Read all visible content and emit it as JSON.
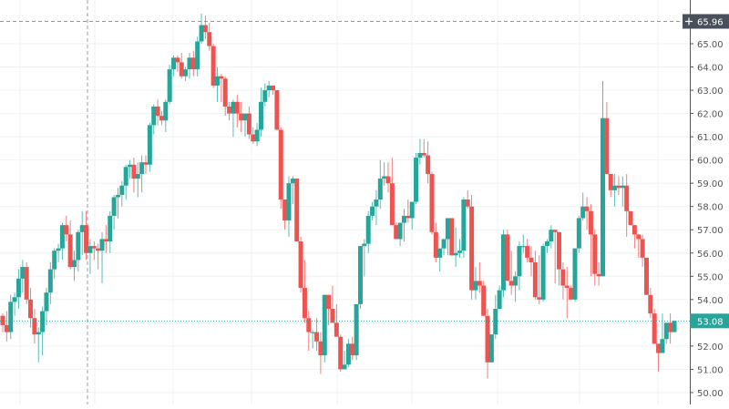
{
  "chart_data": {
    "type": "candlestick",
    "title": "",
    "xlabel": "",
    "ylabel": "",
    "ylim": [
      49.6,
      66.9
    ],
    "grid": true,
    "y_ticks": [
      "50.00",
      "51.00",
      "52.00",
      "53.00",
      "54.00",
      "55.00",
      "56.00",
      "57.00",
      "58.00",
      "59.00",
      "60.00",
      "61.00",
      "62.00",
      "63.00",
      "64.00",
      "65.00"
    ],
    "y_tick_values": [
      50,
      51,
      52,
      53,
      54,
      55,
      56,
      57,
      58,
      59,
      60,
      61,
      62,
      63,
      64,
      65
    ],
    "crosshair": {
      "price": 65.96,
      "label": "65.96",
      "x": 96
    },
    "last_price": {
      "value": 53.08,
      "label": "53.08"
    },
    "colors": {
      "up": "#26a69a",
      "down": "#ef5350",
      "grid": "#eef2f6",
      "axis": "#555555",
      "crosshair_label_bg": "#4a4f5c",
      "last_price_bg": "#26a69a"
    },
    "candles": [
      [
        53.3,
        53.4,
        52.6,
        52.9
      ],
      [
        52.9,
        53.5,
        52.2,
        52.6
      ],
      [
        52.6,
        54.2,
        52.3,
        53.9
      ],
      [
        53.9,
        54.3,
        53.3,
        54.1
      ],
      [
        54.1,
        55.3,
        53.6,
        54.9
      ],
      [
        54.9,
        55.7,
        54.3,
        55.4
      ],
      [
        55.4,
        55.6,
        53.8,
        54.0
      ],
      [
        54.0,
        54.5,
        52.8,
        53.2
      ],
      [
        53.2,
        53.6,
        52.1,
        52.5
      ],
      [
        52.5,
        52.8,
        51.3,
        52.6
      ],
      [
        52.6,
        53.7,
        51.6,
        53.5
      ],
      [
        53.5,
        54.5,
        52.9,
        54.3
      ],
      [
        54.3,
        55.6,
        53.8,
        55.3
      ],
      [
        55.3,
        56.2,
        54.9,
        56.1
      ],
      [
        56.1,
        56.4,
        55.6,
        56.2
      ],
      [
        56.2,
        57.3,
        55.7,
        57.2
      ],
      [
        57.2,
        57.6,
        56.5,
        56.8
      ],
      [
        56.8,
        57.4,
        55.3,
        55.4
      ],
      [
        55.4,
        56.1,
        54.8,
        55.7
      ],
      [
        55.7,
        57.0,
        55.2,
        56.9
      ],
      [
        56.9,
        57.8,
        55.9,
        57.2
      ],
      [
        57.2,
        57.8,
        55.7,
        56.0
      ],
      [
        56.0,
        56.6,
        55.1,
        56.3
      ],
      [
        56.3,
        56.5,
        55.7,
        56.2
      ],
      [
        56.2,
        56.4,
        55.3,
        56.1
      ],
      [
        56.1,
        56.9,
        54.7,
        56.6
      ],
      [
        56.6,
        57.2,
        56.0,
        56.5
      ],
      [
        56.5,
        57.8,
        56.0,
        57.6
      ],
      [
        57.6,
        58.5,
        57.0,
        58.4
      ],
      [
        58.4,
        58.8,
        57.5,
        58.5
      ],
      [
        58.5,
        59.1,
        58.0,
        58.9
      ],
      [
        58.9,
        59.8,
        58.3,
        59.7
      ],
      [
        59.7,
        60.0,
        59.2,
        59.8
      ],
      [
        59.8,
        60.1,
        58.6,
        59.2
      ],
      [
        59.2,
        59.9,
        58.4,
        59.4
      ],
      [
        59.4,
        60.2,
        58.6,
        59.9
      ],
      [
        59.9,
        60.2,
        59.4,
        59.8
      ],
      [
        59.8,
        61.6,
        59.5,
        61.5
      ],
      [
        61.5,
        62.4,
        61.1,
        62.3
      ],
      [
        62.3,
        62.6,
        61.5,
        61.9
      ],
      [
        61.9,
        62.1,
        61.5,
        61.7
      ],
      [
        61.7,
        62.6,
        61.2,
        62.5
      ],
      [
        62.5,
        64.1,
        62.4,
        63.9
      ],
      [
        63.9,
        64.5,
        63.6,
        64.4
      ],
      [
        64.4,
        64.5,
        63.8,
        64.2
      ],
      [
        64.2,
        64.6,
        63.5,
        63.6
      ],
      [
        63.6,
        64.0,
        63.4,
        63.9
      ],
      [
        63.9,
        64.6,
        63.5,
        64.4
      ],
      [
        64.4,
        64.7,
        63.6,
        63.9
      ],
      [
        63.9,
        65.3,
        63.6,
        65.1
      ],
      [
        65.1,
        66.3,
        65.0,
        65.8
      ],
      [
        65.8,
        66.2,
        65.2,
        65.5
      ],
      [
        65.5,
        65.9,
        64.7,
        64.9
      ],
      [
        64.9,
        65.0,
        63.1,
        63.2
      ],
      [
        63.2,
        64.0,
        62.5,
        63.6
      ],
      [
        63.6,
        63.7,
        62.5,
        63.5
      ],
      [
        63.5,
        63.6,
        61.9,
        62.3
      ],
      [
        62.3,
        62.5,
        61.7,
        62.0
      ],
      [
        62.0,
        62.6,
        61.0,
        62.5
      ],
      [
        62.5,
        62.8,
        61.4,
        62.0
      ],
      [
        62.0,
        62.5,
        61.2,
        61.7
      ],
      [
        61.7,
        62.0,
        61.0,
        62.0
      ],
      [
        62.0,
        62.3,
        60.9,
        61.1
      ],
      [
        61.1,
        61.4,
        60.7,
        60.8
      ],
      [
        60.8,
        61.6,
        60.6,
        61.3
      ],
      [
        61.3,
        63.1,
        61.0,
        62.5
      ],
      [
        62.5,
        63.3,
        62.3,
        63.0
      ],
      [
        63.0,
        63.4,
        62.7,
        63.2
      ],
      [
        63.2,
        63.2,
        62.8,
        63.0
      ],
      [
        63.0,
        63.0,
        61.4,
        61.3
      ],
      [
        61.3,
        61.4,
        57.9,
        58.3
      ],
      [
        58.3,
        58.2,
        57.0,
        57.4
      ],
      [
        57.4,
        59.3,
        56.7,
        59.0
      ],
      [
        59.0,
        59.3,
        58.1,
        59.2
      ],
      [
        59.2,
        59.2,
        56.8,
        56.5
      ],
      [
        56.5,
        56.7,
        54.3,
        54.5
      ],
      [
        54.5,
        55.7,
        53.0,
        53.2
      ],
      [
        53.2,
        53.5,
        51.8,
        52.6
      ],
      [
        52.6,
        52.7,
        51.9,
        52.6
      ],
      [
        52.6,
        53.2,
        51.8,
        52.2
      ],
      [
        52.2,
        52.6,
        50.8,
        51.6
      ],
      [
        51.6,
        53.6,
        51.3,
        54.2
      ],
      [
        54.2,
        54.2,
        52.9,
        53.6
      ],
      [
        53.6,
        54.6,
        53.0,
        53.0
      ],
      [
        53.0,
        53.8,
        52.6,
        52.4
      ],
      [
        52.4,
        52.5,
        50.9,
        51.0
      ],
      [
        51.0,
        51.8,
        51.0,
        51.2
      ],
      [
        51.2,
        52.3,
        51.1,
        52.1
      ],
      [
        52.1,
        52.4,
        51.4,
        51.6
      ],
      [
        51.6,
        53.2,
        51.4,
        53.8
      ],
      [
        53.8,
        56.2,
        53.6,
        56.3
      ],
      [
        56.3,
        56.6,
        55.0,
        56.4
      ],
      [
        56.4,
        57.8,
        56.0,
        57.6
      ],
      [
        57.6,
        58.2,
        57.4,
        58.0
      ],
      [
        58.0,
        58.7,
        57.2,
        58.3
      ],
      [
        58.3,
        60.0,
        57.9,
        59.2
      ],
      [
        59.2,
        59.9,
        58.9,
        59.3
      ],
      [
        59.3,
        59.9,
        58.6,
        59.0
      ],
      [
        59.0,
        60.1,
        57.8,
        57.2
      ],
      [
        57.2,
        57.3,
        56.6,
        56.6
      ],
      [
        56.6,
        57.2,
        56.3,
        57.3
      ],
      [
        57.3,
        57.9,
        56.5,
        57.6
      ],
      [
        57.6,
        58.3,
        57.3,
        57.5
      ],
      [
        57.5,
        58.1,
        57.0,
        58.2
      ],
      [
        58.2,
        60.3,
        58.1,
        60.1
      ],
      [
        60.1,
        60.9,
        59.8,
        60.3
      ],
      [
        60.3,
        60.9,
        60.1,
        60.2
      ],
      [
        60.2,
        60.8,
        59.0,
        59.4
      ],
      [
        59.4,
        59.5,
        56.8,
        56.9
      ],
      [
        56.9,
        57.3,
        55.6,
        55.8
      ],
      [
        55.8,
        56.2,
        55.2,
        56.2
      ],
      [
        56.2,
        56.6,
        55.9,
        56.6
      ],
      [
        56.6,
        57.1,
        55.9,
        57.5
      ],
      [
        57.5,
        57.4,
        56.0,
        55.9
      ],
      [
        55.9,
        57.1,
        55.4,
        56.0
      ],
      [
        56.0,
        56.6,
        55.8,
        56.1
      ],
      [
        56.1,
        58.4,
        55.8,
        58.3
      ],
      [
        58.3,
        58.7,
        57.9,
        58.0
      ],
      [
        58.0,
        58.5,
        54.0,
        54.4
      ],
      [
        54.4,
        55.4,
        54.0,
        54.8
      ],
      [
        54.8,
        55.6,
        54.3,
        54.6
      ],
      [
        54.6,
        54.8,
        53.4,
        53.3
      ],
      [
        53.3,
        53.6,
        50.6,
        51.3
      ],
      [
        51.3,
        52.3,
        52.1,
        52.5
      ],
      [
        52.5,
        54.2,
        52.3,
        53.6
      ],
      [
        53.6,
        54.6,
        54.0,
        54.4
      ],
      [
        54.4,
        57.0,
        54.1,
        56.8
      ],
      [
        56.8,
        57.0,
        55.2,
        54.8
      ],
      [
        54.8,
        56.1,
        54.2,
        54.6
      ],
      [
        54.6,
        55.2,
        53.9,
        55.0
      ],
      [
        55.0,
        56.5,
        54.4,
        56.3
      ],
      [
        56.3,
        56.8,
        56.0,
        56.3
      ],
      [
        56.3,
        56.6,
        55.6,
        55.8
      ],
      [
        55.8,
        56.3,
        55.0,
        55.6
      ],
      [
        55.6,
        56.1,
        54.0,
        54.1
      ],
      [
        54.1,
        55.9,
        53.8,
        54.0
      ],
      [
        54.0,
        56.4,
        53.9,
        56.3
      ],
      [
        56.3,
        56.6,
        56.0,
        56.5
      ],
      [
        56.5,
        57.2,
        56.2,
        57.0
      ],
      [
        57.0,
        56.8,
        54.7,
        56.9
      ],
      [
        56.9,
        55.9,
        54.6,
        55.3
      ],
      [
        55.3,
        55.6,
        54.0,
        54.6
      ],
      [
        54.6,
        55.4,
        53.2,
        54.5
      ],
      [
        54.5,
        54.6,
        54.0,
        54.0
      ],
      [
        54.0,
        56.0,
        53.9,
        56.2
      ],
      [
        56.2,
        57.6,
        56.0,
        57.5
      ],
      [
        57.5,
        58.6,
        57.4,
        58.0
      ],
      [
        58.0,
        58.4,
        57.0,
        57.8
      ],
      [
        57.8,
        58.1,
        55.0,
        56.8
      ],
      [
        56.8,
        57.0,
        54.6,
        55.1
      ],
      [
        55.1,
        55.6,
        54.6,
        55.0
      ],
      [
        55.0,
        63.4,
        55.0,
        61.8
      ],
      [
        61.8,
        62.5,
        60.3,
        59.4
      ],
      [
        59.4,
        59.4,
        58.4,
        58.7
      ],
      [
        58.7,
        59.4,
        58.0,
        58.9
      ],
      [
        58.9,
        59.3,
        58.5,
        58.8
      ],
      [
        58.8,
        59.3,
        58.0,
        58.9
      ],
      [
        58.9,
        59.4,
        56.7,
        57.8
      ],
      [
        57.8,
        57.8,
        57.6,
        57.2
      ],
      [
        57.2,
        56.8,
        56.2,
        56.8
      ],
      [
        56.8,
        56.7,
        55.8,
        56.6
      ],
      [
        56.6,
        56.8,
        55.4,
        55.8
      ],
      [
        55.8,
        55.4,
        54.6,
        54.2
      ],
      [
        54.2,
        54.5,
        53.2,
        53.4
      ],
      [
        53.4,
        53.6,
        52.1,
        52.1
      ],
      [
        52.1,
        52.1,
        50.9,
        51.7
      ],
      [
        51.7,
        53.4,
        51.7,
        52.3
      ],
      [
        52.3,
        52.4,
        52.1,
        53.0
      ],
      [
        53.0,
        53.4,
        52.1,
        52.6
      ],
      [
        52.6,
        53.1,
        52.6,
        53.08
      ]
    ]
  }
}
